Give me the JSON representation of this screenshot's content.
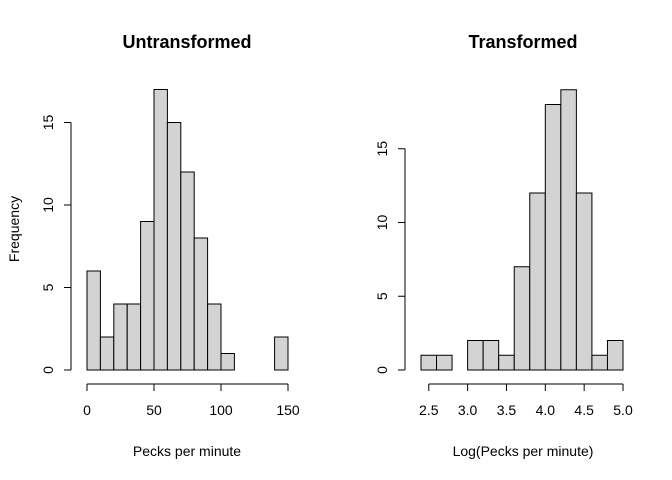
{
  "chart_data": [
    {
      "type": "bar",
      "title": "Untransformed",
      "xlabel": "Pecks per minute",
      "ylabel": "Frequency",
      "bin_edges": [
        0,
        10,
        20,
        30,
        40,
        50,
        60,
        70,
        80,
        90,
        100,
        110,
        120,
        130,
        140,
        150
      ],
      "values": [
        6,
        2,
        4,
        4,
        9,
        17,
        15,
        12,
        8,
        4,
        1,
        0,
        0,
        0,
        2
      ],
      "xticks": [
        "0",
        "50",
        "100",
        "150"
      ],
      "xtick_values": [
        0,
        50,
        100,
        150
      ],
      "yticks": [
        "0",
        "5",
        "10",
        "15"
      ],
      "ytick_values": [
        0,
        5,
        10,
        15
      ],
      "xlim": [
        0,
        150
      ],
      "ylim": [
        0,
        17
      ],
      "grid": false,
      "bar_color": "#d3d3d3"
    },
    {
      "type": "bar",
      "title": "Transformed",
      "xlabel": "Log(Pecks per minute)",
      "ylabel": "",
      "bin_edges": [
        2.4,
        2.6,
        2.8,
        3.0,
        3.2,
        3.4,
        3.6,
        3.8,
        4.0,
        4.2,
        4.4,
        4.6,
        4.8,
        5.0
      ],
      "values": [
        1,
        1,
        0,
        2,
        2,
        1,
        7,
        12,
        18,
        19,
        12,
        1,
        2
      ],
      "xticks": [
        "2.5",
        "3.0",
        "3.5",
        "4.0",
        "4.5",
        "5.0"
      ],
      "xtick_values": [
        2.5,
        3.0,
        3.5,
        4.0,
        4.5,
        5.0
      ],
      "yticks": [
        "0",
        "5",
        "10",
        "15"
      ],
      "ytick_values": [
        0,
        5,
        10,
        15
      ],
      "xlim": [
        2.4,
        5.0
      ],
      "ylim": [
        0,
        19
      ],
      "grid": false,
      "bar_color": "#d3d3d3"
    }
  ]
}
